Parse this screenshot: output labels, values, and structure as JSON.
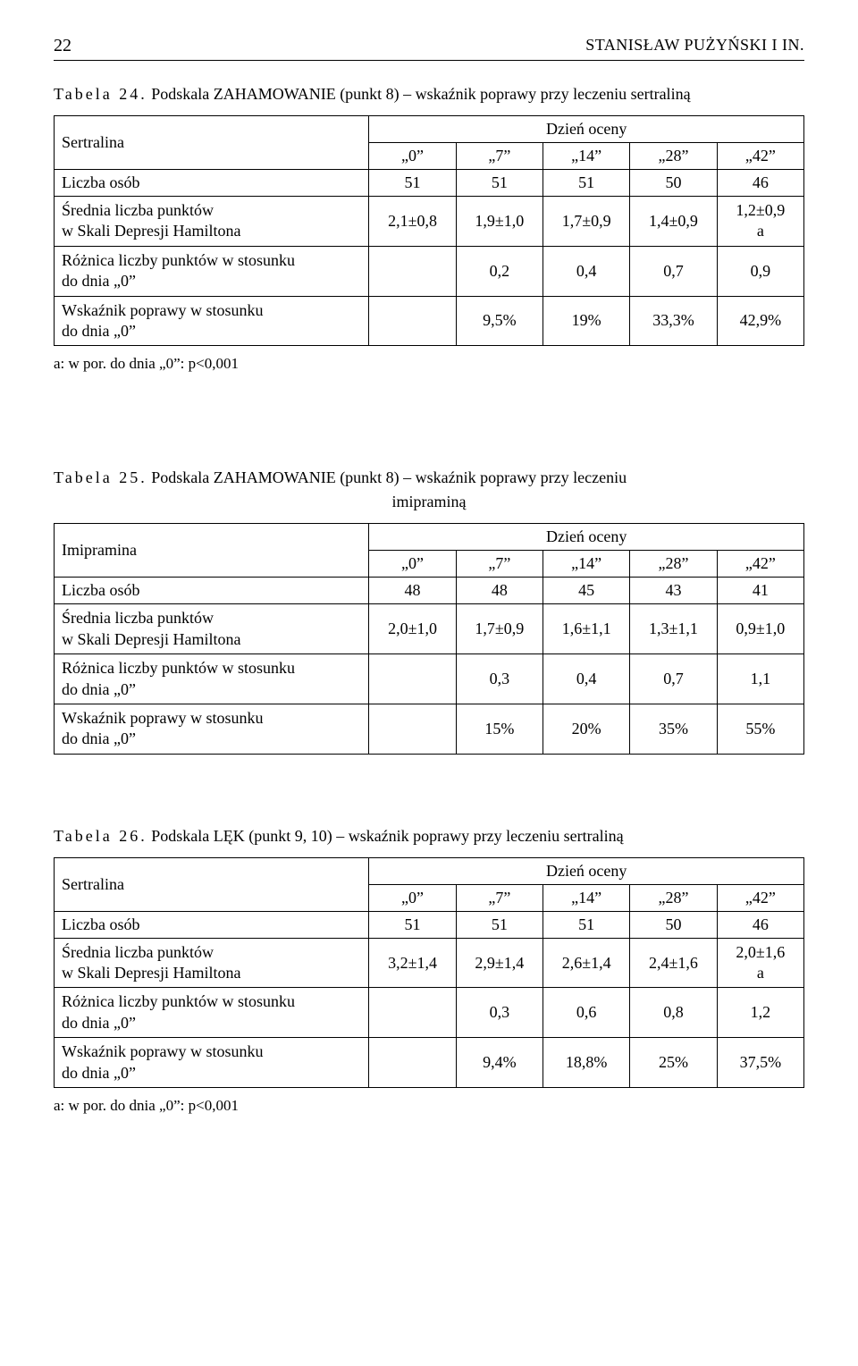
{
  "header": {
    "page": "22",
    "author": "STANISŁAW PUŻYŃSKI I IN."
  },
  "t24": {
    "caption_label": "Tabela 24.",
    "caption_text": "Podskala ZAHAMOWANIE (punkt 8) – wskaźnik poprawy przy leczeniu sertraliną",
    "drug": "Sertralina",
    "ocena": "Dzień oceny",
    "days": [
      "„0”",
      "„7”",
      "„14”",
      "„28”",
      "„42”"
    ],
    "rows": {
      "liczba_label": "Liczba osób",
      "liczba": [
        "51",
        "51",
        "51",
        "50",
        "46"
      ],
      "srednia_label1": "Średnia liczba punktów",
      "srednia_label2": "w Skali Depresji Hamiltona",
      "srednia": [
        "2,1±0,8",
        "1,9±1,0",
        "1,7±0,9",
        "1,4±0,9",
        "1,2±0,9\na"
      ],
      "roznica_label1": "Różnica liczby punktów w stosunku",
      "roznica_label2": "do dnia „0”",
      "roznica": [
        "",
        "0,2",
        "0,4",
        "0,7",
        "0,9"
      ],
      "wskaznik_label1": "Wskaźnik poprawy w stosunku",
      "wskaznik_label2": "do dnia „0”",
      "wskaznik": [
        "",
        "9,5%",
        "19%",
        "33,3%",
        "42,9%"
      ]
    },
    "footnote": "a: w por. do dnia „0”:  p<0,001"
  },
  "t25": {
    "caption_label": "Tabela 25.",
    "caption_text_line1": "Podskala ZAHAMOWANIE (punkt 8) – wskaźnik poprawy przy leczeniu",
    "caption_text_line2": "imipraminą",
    "drug": "Imipramina",
    "ocena": "Dzień oceny",
    "days": [
      "„0”",
      "„7”",
      "„14”",
      "„28”",
      "„42”"
    ],
    "rows": {
      "liczba_label": "Liczba osób",
      "liczba": [
        "48",
        "48",
        "45",
        "43",
        "41"
      ],
      "srednia_label1": "Średnia liczba punktów",
      "srednia_label2": "w Skali Depresji Hamiltona",
      "srednia": [
        "2,0±1,0",
        "1,7±0,9",
        "1,6±1,1",
        "1,3±1,1",
        "0,9±1,0"
      ],
      "roznica_label1": "Różnica liczby punktów w stosunku",
      "roznica_label2": "do dnia „0”",
      "roznica": [
        "",
        "0,3",
        "0,4",
        "0,7",
        "1,1"
      ],
      "wskaznik_label1": "Wskaźnik poprawy w stosunku",
      "wskaznik_label2": "do dnia „0”",
      "wskaznik": [
        "",
        "15%",
        "20%",
        "35%",
        "55%"
      ]
    }
  },
  "t26": {
    "caption_label": "Tabela 26.",
    "caption_text": "Podskala LĘK (punkt 9, 10) – wskaźnik poprawy przy leczeniu sertraliną",
    "drug": "Sertralina",
    "ocena": "Dzień oceny",
    "days": [
      "„0”",
      "„7”",
      "„14”",
      "„28”",
      "„42”"
    ],
    "rows": {
      "liczba_label": "Liczba osób",
      "liczba": [
        "51",
        "51",
        "51",
        "50",
        "46"
      ],
      "srednia_label1": "Średnia liczba punktów",
      "srednia_label2": "w Skali Depresji Hamiltona",
      "srednia": [
        "3,2±1,4",
        "2,9±1,4",
        "2,6±1,4",
        "2,4±1,6",
        "2,0±1,6\na"
      ],
      "roznica_label1": "Różnica liczby punktów w stosunku",
      "roznica_label2": "do dnia „0”",
      "roznica": [
        "",
        "0,3",
        "0,6",
        "0,8",
        "1,2"
      ],
      "wskaznik_label1": "Wskaźnik poprawy w stosunku",
      "wskaznik_label2": "do dnia „0”",
      "wskaznik": [
        "",
        "9,4%",
        "18,8%",
        "25%",
        "37,5%"
      ]
    },
    "footnote": "a: w por. do dnia „0”:  p<0,001"
  }
}
